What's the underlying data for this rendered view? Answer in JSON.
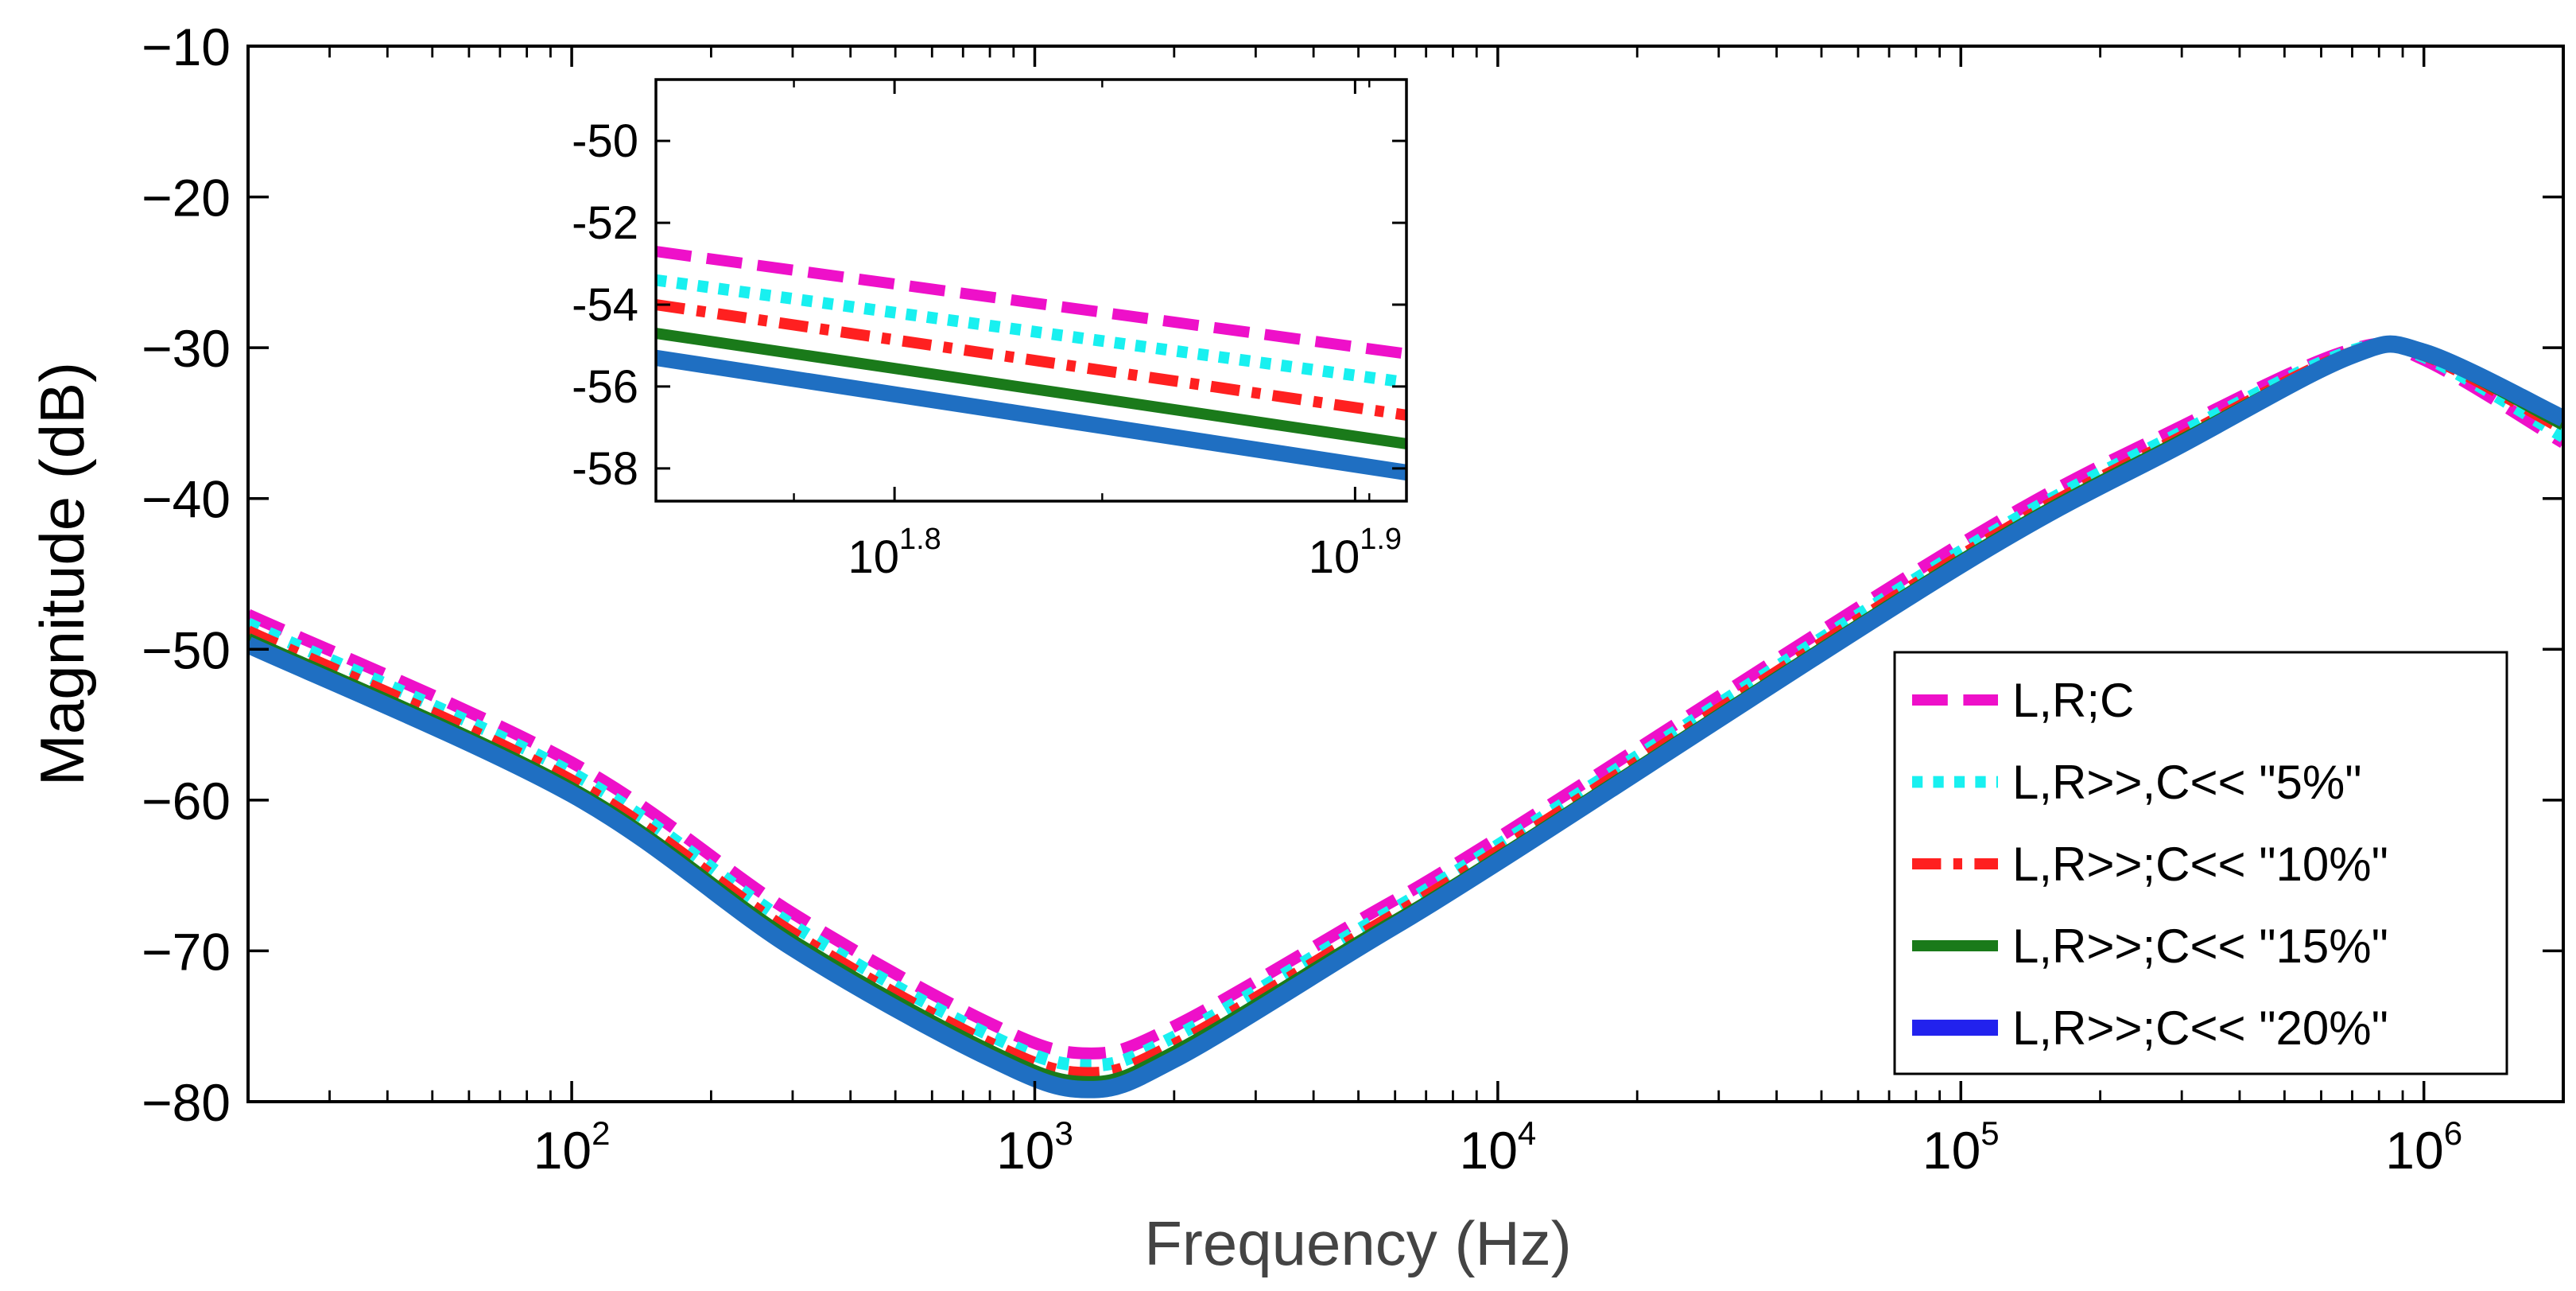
{
  "chart_data": [
    {
      "type": "line",
      "title": "",
      "xlabel": "Frequency (Hz)",
      "ylabel": "Magnitude (dB)",
      "xscale": "log",
      "xlim": [
        20,
        2000000
      ],
      "ylim": [
        -80,
        -10
      ],
      "grid": false,
      "legend_position": "bottom-right",
      "x_ticks": [
        {
          "value": 100,
          "base": "10",
          "exp": "2"
        },
        {
          "value": 1000,
          "base": "10",
          "exp": "3"
        },
        {
          "value": 10000,
          "base": "10",
          "exp": "4"
        },
        {
          "value": 100000,
          "base": "10",
          "exp": "5"
        },
        {
          "value": 1000000,
          "base": "10",
          "exp": "6"
        }
      ],
      "y_ticks": [
        {
          "value": -10,
          "label": "−10"
        },
        {
          "value": -20,
          "label": "−20"
        },
        {
          "value": -30,
          "label": "−30"
        },
        {
          "value": -40,
          "label": "−40"
        },
        {
          "value": -50,
          "label": "−50"
        },
        {
          "value": -60,
          "label": "−60"
        },
        {
          "value": -70,
          "label": "−70"
        },
        {
          "value": -80,
          "label": "−80"
        }
      ],
      "series": [
        {
          "name": "L,R;C",
          "color": "#ee10c9",
          "style": "dashed",
          "x": [
            20,
            100,
            300,
            800,
            1300,
            2000,
            5000,
            10000,
            100000,
            300000,
            700000,
            1000000,
            2000000
          ],
          "y": [
            -47.7,
            -57.5,
            -67.5,
            -74.8,
            -76.8,
            -75,
            -68,
            -62.5,
            -43,
            -35.2,
            -30.1,
            -30.8,
            -36.3
          ]
        },
        {
          "name": "L,R>>,C<< \"5%\"",
          "color": "#18f0f0",
          "style": "dotted",
          "x": [
            20,
            100,
            300,
            800,
            1300,
            2000,
            5000,
            10000,
            100000,
            300000,
            700000,
            1000000,
            2000000
          ],
          "y": [
            -48.3,
            -58.2,
            -68.3,
            -75.6,
            -77.6,
            -75.7,
            -68.6,
            -63,
            -43.5,
            -35.6,
            -30.2,
            -30.6,
            -35.9
          ]
        },
        {
          "name": "L,R>>;C<< \"10%\"",
          "color": "#ff2020",
          "style": "dashdot",
          "x": [
            20,
            100,
            300,
            800,
            1300,
            2000,
            5000,
            10000,
            100000,
            300000,
            700000,
            1000000,
            2000000
          ],
          "y": [
            -48.8,
            -58.7,
            -68.8,
            -76.1,
            -78.1,
            -76.2,
            -69,
            -63.4,
            -43.8,
            -35.9,
            -30.3,
            -30.5,
            -35.4
          ]
        },
        {
          "name": "L,R>>;C<< \"15%\"",
          "color": "#1a7a1a",
          "style": "solid",
          "x": [
            20,
            100,
            300,
            800,
            1300,
            2000,
            5000,
            10000,
            100000,
            300000,
            700000,
            1000000,
            2000000
          ],
          "y": [
            -49.3,
            -59.2,
            -69.3,
            -76.6,
            -78.7,
            -76.7,
            -69.4,
            -63.8,
            -44.1,
            -36.1,
            -30.4,
            -30.4,
            -35.1
          ]
        },
        {
          "name": "L,R>>;C<< \"20%\"",
          "color": "#1f6fc2",
          "legend_color": "#2222ee",
          "style": "solid-thick",
          "x": [
            20,
            100,
            300,
            800,
            1300,
            2000,
            5000,
            10000,
            100000,
            300000,
            700000,
            1000000,
            2000000
          ],
          "y": [
            -49.7,
            -59.6,
            -69.8,
            -77.1,
            -79.2,
            -77.2,
            -69.8,
            -64.1,
            -44.4,
            -36.4,
            -30.5,
            -30.3,
            -34.7
          ]
        }
      ]
    },
    {
      "type": "line",
      "title": "",
      "role": "inset-zoom",
      "xscale": "log",
      "xlim": [
        56,
        81.5
      ],
      "ylim": [
        -58.8,
        -48.5
      ],
      "grid": false,
      "x_ticks": [
        {
          "value": 63.0957,
          "base": "10",
          "exp": "1.8"
        },
        {
          "value": 79.4328,
          "base": "10",
          "exp": "1.9"
        }
      ],
      "y_ticks": [
        {
          "value": -50,
          "label": "-50"
        },
        {
          "value": -52,
          "label": "-52"
        },
        {
          "value": -54,
          "label": "-54"
        },
        {
          "value": -56,
          "label": "-56"
        },
        {
          "value": -58,
          "label": "-58"
        }
      ],
      "series": [
        {
          "name": "L,R;C",
          "color": "#ee10c9",
          "style": "dashed",
          "x": [
            56,
            81.5
          ],
          "y": [
            -52.7,
            -55.2
          ]
        },
        {
          "name": "L,R>>,C<< \"5%\"",
          "color": "#18f0f0",
          "style": "dotted",
          "x": [
            56,
            81.5
          ],
          "y": [
            -53.4,
            -55.9
          ]
        },
        {
          "name": "L,R>>;C<< \"10%\"",
          "color": "#ff2020",
          "style": "dashdot",
          "x": [
            56,
            81.5
          ],
          "y": [
            -54.0,
            -56.7
          ]
        },
        {
          "name": "L,R>>;C<< \"15%\"",
          "color": "#1a7a1a",
          "style": "solid",
          "x": [
            56,
            81.5
          ],
          "y": [
            -54.7,
            -57.4
          ]
        },
        {
          "name": "L,R>>;C<< \"20%\"",
          "color": "#1f6fc2",
          "style": "solid-thick",
          "x": [
            56,
            81.5
          ],
          "y": [
            -55.3,
            -58.1
          ]
        }
      ]
    }
  ]
}
